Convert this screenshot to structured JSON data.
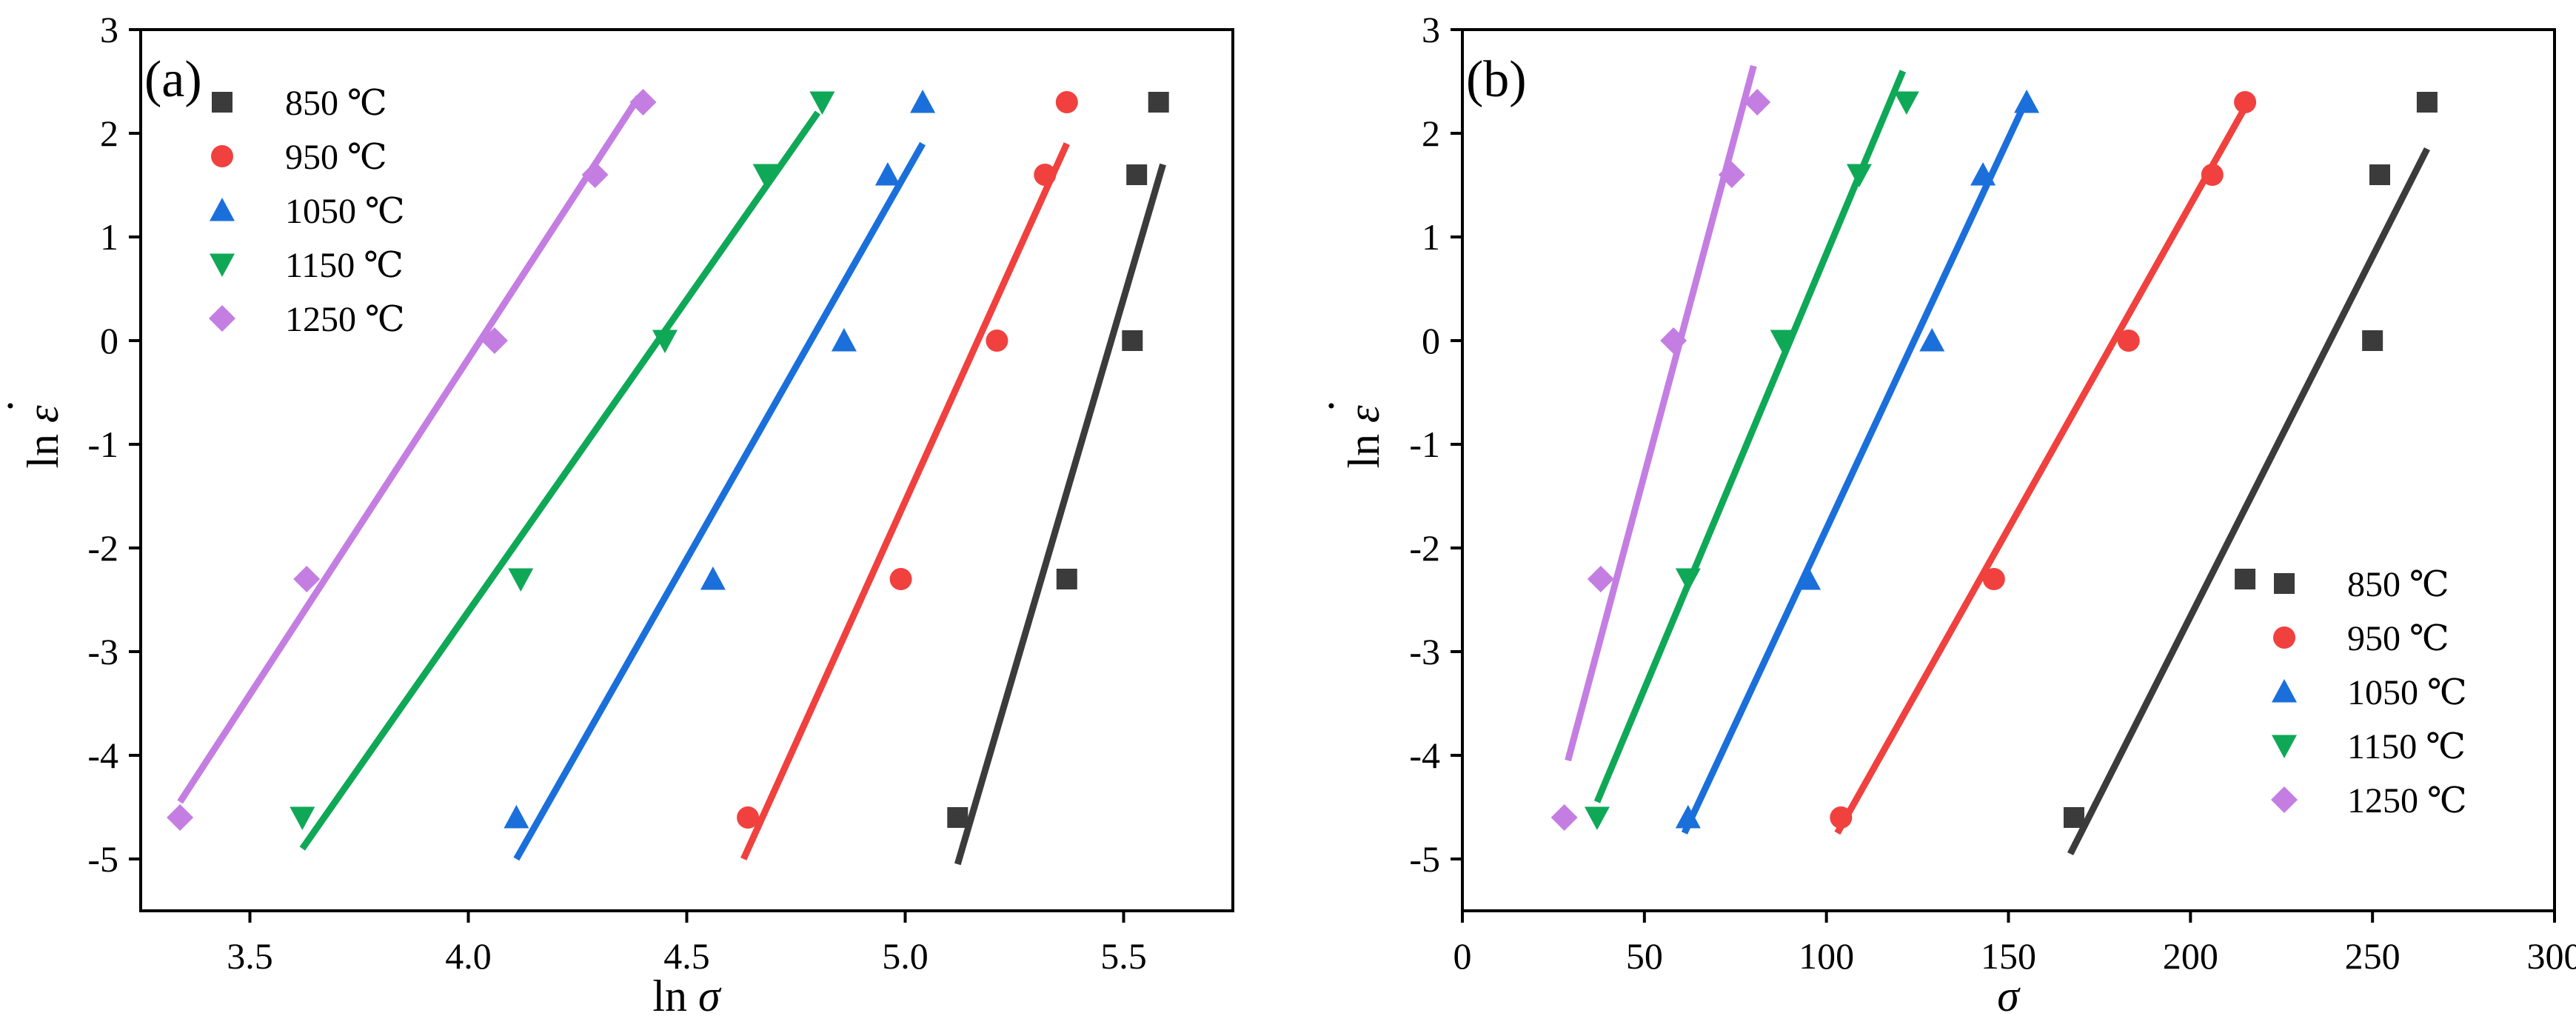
{
  "chart_data": [
    {
      "type": "scatter",
      "panel_label": "(a)",
      "xlabel_prefix": "ln ",
      "xlabel_symbol": "σ",
      "ylabel_prefix": "ln ",
      "ylabel_symbol": "ε",
      "ylabel_accent": "·",
      "xlim": [
        3.25,
        5.75
      ],
      "ylim": [
        -5.5,
        3
      ],
      "xticks": [
        "3.5",
        "4.0",
        "4.5",
        "5.0",
        "5.5"
      ],
      "xtick_values": [
        3.5,
        4.0,
        4.5,
        5.0,
        5.5
      ],
      "yticks": [
        "3",
        "2",
        "1",
        "0",
        "-1",
        "-2",
        "-3",
        "-4",
        "-5"
      ],
      "ytick_values": [
        3,
        2,
        1,
        0,
        -1,
        -2,
        -3,
        -4,
        -5
      ],
      "legend_position": "top-left",
      "series": [
        {
          "name": "850 ℃",
          "color": "#3b3b3b",
          "marker": "square",
          "x": [
            5.12,
            5.37,
            5.52,
            5.53,
            5.58
          ],
          "y": [
            -4.6,
            -2.3,
            0,
            1.6,
            2.3
          ],
          "fit": {
            "x": [
              5.12,
              5.59
            ],
            "y": [
              -5.05,
              1.7
            ]
          }
        },
        {
          "name": "950 ℃",
          "color": "#f0413f",
          "marker": "circle",
          "x": [
            4.64,
            4.99,
            5.21,
            5.32,
            5.37
          ],
          "y": [
            -4.6,
            -2.3,
            0,
            1.6,
            2.3
          ],
          "fit": {
            "x": [
              4.63,
              5.37
            ],
            "y": [
              -5.0,
              1.9
            ]
          }
        },
        {
          "name": "1050 ℃",
          "color": "#1a6fdb",
          "marker": "triangle-up",
          "x": [
            4.11,
            4.56,
            4.86,
            4.96,
            5.04
          ],
          "y": [
            -4.6,
            -2.3,
            0,
            1.6,
            2.3
          ],
          "fit": {
            "x": [
              4.11,
              5.04
            ],
            "y": [
              -5.0,
              1.9
            ]
          }
        },
        {
          "name": "1150 ℃",
          "color": "#0fa857",
          "marker": "triangle-down",
          "x": [
            3.62,
            4.12,
            4.45,
            4.68,
            4.81
          ],
          "y": [
            -4.6,
            -2.3,
            0,
            1.6,
            2.3
          ],
          "fit": {
            "x": [
              3.62,
              4.8
            ],
            "y": [
              -4.9,
              2.2
            ]
          }
        },
        {
          "name": "1250 ℃",
          "color": "#c47ee2",
          "marker": "diamond",
          "x": [
            3.34,
            3.63,
            4.06,
            4.29,
            4.4
          ],
          "y": [
            -4.6,
            -2.3,
            0,
            1.6,
            2.3
          ],
          "fit": {
            "x": [
              3.34,
              4.39
            ],
            "y": [
              -4.45,
              2.35
            ]
          }
        }
      ]
    },
    {
      "type": "scatter",
      "panel_label": "(b)",
      "xlabel_prefix": "",
      "xlabel_symbol": "σ",
      "ylabel_prefix": "ln ",
      "ylabel_symbol": "ε",
      "ylabel_accent": "·",
      "xlim": [
        0,
        300
      ],
      "ylim": [
        -5.5,
        3
      ],
      "xticks": [
        "0",
        "50",
        "100",
        "150",
        "200",
        "250",
        "300"
      ],
      "xtick_values": [
        0,
        50,
        100,
        150,
        200,
        250,
        300
      ],
      "yticks": [
        "3",
        "2",
        "1",
        "0",
        "-1",
        "-2",
        "-3",
        "-4",
        "-5"
      ],
      "ytick_values": [
        3,
        2,
        1,
        0,
        -1,
        -2,
        -3,
        -4,
        -5
      ],
      "legend_position": "bottom-right",
      "series": [
        {
          "name": "850 ℃",
          "color": "#3b3b3b",
          "marker": "square",
          "x": [
            168,
            215,
            250,
            252,
            265
          ],
          "y": [
            -4.6,
            -2.3,
            0,
            1.6,
            2.3
          ],
          "fit": {
            "x": [
              167,
              265
            ],
            "y": [
              -4.95,
              1.85
            ]
          }
        },
        {
          "name": "950 ℃",
          "color": "#f0413f",
          "marker": "circle",
          "x": [
            104,
            146,
            183,
            206,
            215
          ],
          "y": [
            -4.6,
            -2.3,
            0,
            1.6,
            2.3
          ],
          "fit": {
            "x": [
              103,
              215
            ],
            "y": [
              -4.75,
              2.25
            ]
          }
        },
        {
          "name": "1050 ℃",
          "color": "#1a6fdb",
          "marker": "triangle-up",
          "x": [
            62,
            95,
            129,
            143,
            155
          ],
          "y": [
            -4.6,
            -2.3,
            0,
            1.6,
            2.3
          ],
          "fit": {
            "x": [
              61,
              154
            ],
            "y": [
              -4.75,
              2.25
            ]
          }
        },
        {
          "name": "1150 ℃",
          "color": "#0fa857",
          "marker": "triangle-down",
          "x": [
            37,
            62,
            88,
            109,
            122
          ],
          "y": [
            -4.6,
            -2.3,
            0,
            1.6,
            2.3
          ],
          "fit": {
            "x": [
              37,
              121
            ],
            "y": [
              -4.45,
              2.6
            ]
          }
        },
        {
          "name": "1250 ℃",
          "color": "#c47ee2",
          "marker": "diamond",
          "x": [
            28,
            38,
            58,
            74,
            81
          ],
          "y": [
            -4.6,
            -2.3,
            0,
            1.6,
            2.3
          ],
          "fit": {
            "x": [
              29,
              80
            ],
            "y": [
              -4.05,
              2.65
            ]
          }
        }
      ]
    }
  ]
}
